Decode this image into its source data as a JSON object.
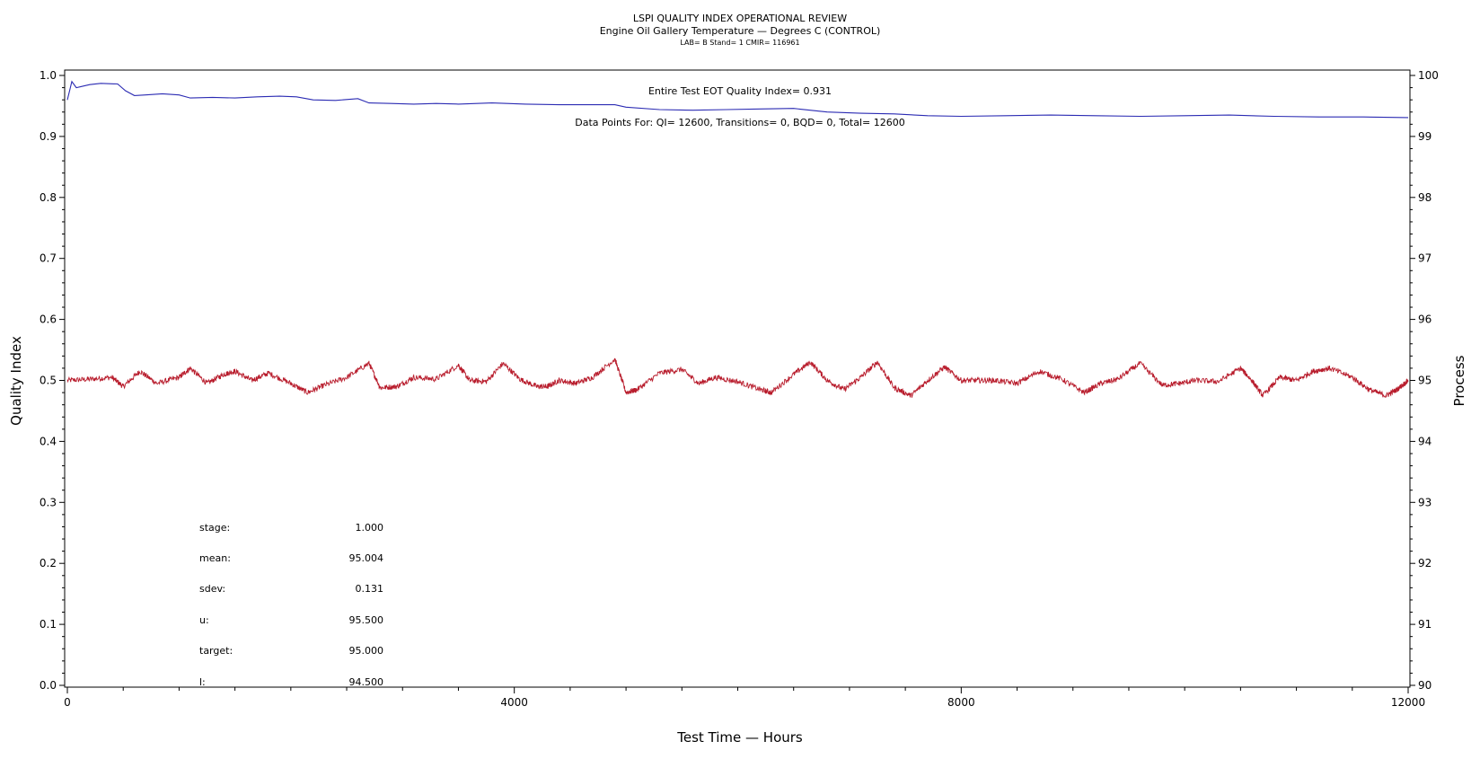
{
  "chart_data": {
    "type": "line",
    "title": "LSPI QUALITY INDEX OPERATIONAL REVIEW",
    "subtitle": "Engine Oil Gallery Temperature — Degrees C (CONTROL)",
    "info_line": "LAB= B Stand= 1 CMIR= 116961",
    "xlabel": "Test Time — Hours",
    "ylabel_left": "Quality Index",
    "ylabel_right": "Process",
    "xlim": [
      0,
      12000
    ],
    "ylim_left": [
      0.0,
      1.0
    ],
    "ylim_right": [
      90,
      100
    ],
    "x_ticks": [
      "0",
      "4000",
      "8000",
      "12000"
    ],
    "y_left_ticks": [
      "0.0",
      "0.1",
      "0.2",
      "0.3",
      "0.4",
      "0.5",
      "0.6",
      "0.7",
      "0.8",
      "0.9",
      "1.0"
    ],
    "y_right_ticks": [
      "90",
      "91",
      "92",
      "93",
      "94",
      "95",
      "96",
      "97",
      "98",
      "99",
      "100"
    ],
    "annotation_qi": "Entire Test EOT Quality Index=   0.931",
    "annotation_points": "Data Points For: QI= 12600, Transitions=     0, BQD=     0, Total= 12600",
    "stats": [
      {
        "label": "stage:",
        "value": "1.000"
      },
      {
        "label": "mean:",
        "value": "95.004"
      },
      {
        "label": "sdev:",
        "value": "0.131"
      },
      {
        "label": "u:",
        "value": "95.500"
      },
      {
        "label": "target:",
        "value": "95.000"
      },
      {
        "label": "l:",
        "value": "94.500"
      }
    ],
    "series": [
      {
        "color": "#2b2bb3",
        "axis": "left",
        "x": [
          0,
          40,
          80,
          130,
          200,
          300,
          450,
          520,
          600,
          700,
          850,
          1000,
          1100,
          1300,
          1500,
          1700,
          1900,
          2050,
          2200,
          2400,
          2600,
          2700,
          2900,
          3100,
          3300,
          3500,
          3800,
          4100,
          4400,
          4700,
          4900,
          5000,
          5300,
          5600,
          5900,
          6200,
          6500,
          6800,
          7100,
          7400,
          7700,
          8000,
          8400,
          8800,
          9200,
          9600,
          10000,
          10400,
          10800,
          11200,
          11600,
          12000
        ],
        "values": [
          0.96,
          0.99,
          0.98,
          0.982,
          0.985,
          0.987,
          0.986,
          0.975,
          0.967,
          0.968,
          0.97,
          0.968,
          0.963,
          0.964,
          0.963,
          0.965,
          0.966,
          0.965,
          0.96,
          0.959,
          0.962,
          0.955,
          0.954,
          0.953,
          0.954,
          0.953,
          0.955,
          0.953,
          0.952,
          0.952,
          0.952,
          0.948,
          0.944,
          0.943,
          0.944,
          0.945,
          0.946,
          0.94,
          0.938,
          0.937,
          0.934,
          0.933,
          0.934,
          0.935,
          0.934,
          0.933,
          0.934,
          0.935,
          0.933,
          0.932,
          0.932,
          0.931
        ]
      },
      {
        "color": "#b81c2c",
        "axis": "right",
        "x": [
          0,
          200,
          400,
          500,
          650,
          800,
          1000,
          1100,
          1250,
          1400,
          1500,
          1650,
          1800,
          2000,
          2150,
          2300,
          2500,
          2700,
          2800,
          2950,
          3100,
          3300,
          3500,
          3600,
          3750,
          3900,
          4050,
          4200,
          4300,
          4400,
          4550,
          4700,
          4900,
          5000,
          5100,
          5300,
          5500,
          5650,
          5800,
          6000,
          6200,
          6300,
          6500,
          6650,
          6800,
          6950,
          7100,
          7250,
          7400,
          7550,
          7700,
          7850,
          8000,
          8150,
          8300,
          8500,
          8700,
          8900,
          9100,
          9250,
          9400,
          9600,
          9800,
          9950,
          10100,
          10300,
          10500,
          10600,
          10700,
          10850,
          11000,
          11150,
          11300,
          11500,
          11650,
          11800,
          11900,
          12000
        ],
        "values": [
          95.0,
          95.02,
          95.05,
          94.9,
          95.15,
          94.95,
          95.05,
          95.2,
          94.95,
          95.1,
          95.15,
          95.0,
          95.12,
          94.95,
          94.8,
          94.92,
          95.05,
          95.28,
          94.88,
          94.9,
          95.05,
          95.02,
          95.25,
          95.0,
          94.98,
          95.28,
          95.02,
          94.9,
          94.9,
          95.0,
          94.95,
          95.05,
          95.35,
          94.8,
          94.85,
          95.12,
          95.18,
          94.95,
          95.05,
          94.98,
          94.85,
          94.8,
          95.1,
          95.3,
          95.0,
          94.85,
          95.05,
          95.3,
          94.88,
          94.75,
          95.0,
          95.22,
          95.0,
          95.0,
          95.0,
          94.95,
          95.15,
          95.02,
          94.8,
          94.95,
          95.02,
          95.28,
          94.92,
          94.95,
          95.0,
          94.98,
          95.2,
          95.0,
          94.75,
          95.05,
          95.0,
          95.15,
          95.2,
          95.05,
          94.85,
          94.75,
          94.85,
          95.0
        ]
      }
    ]
  }
}
